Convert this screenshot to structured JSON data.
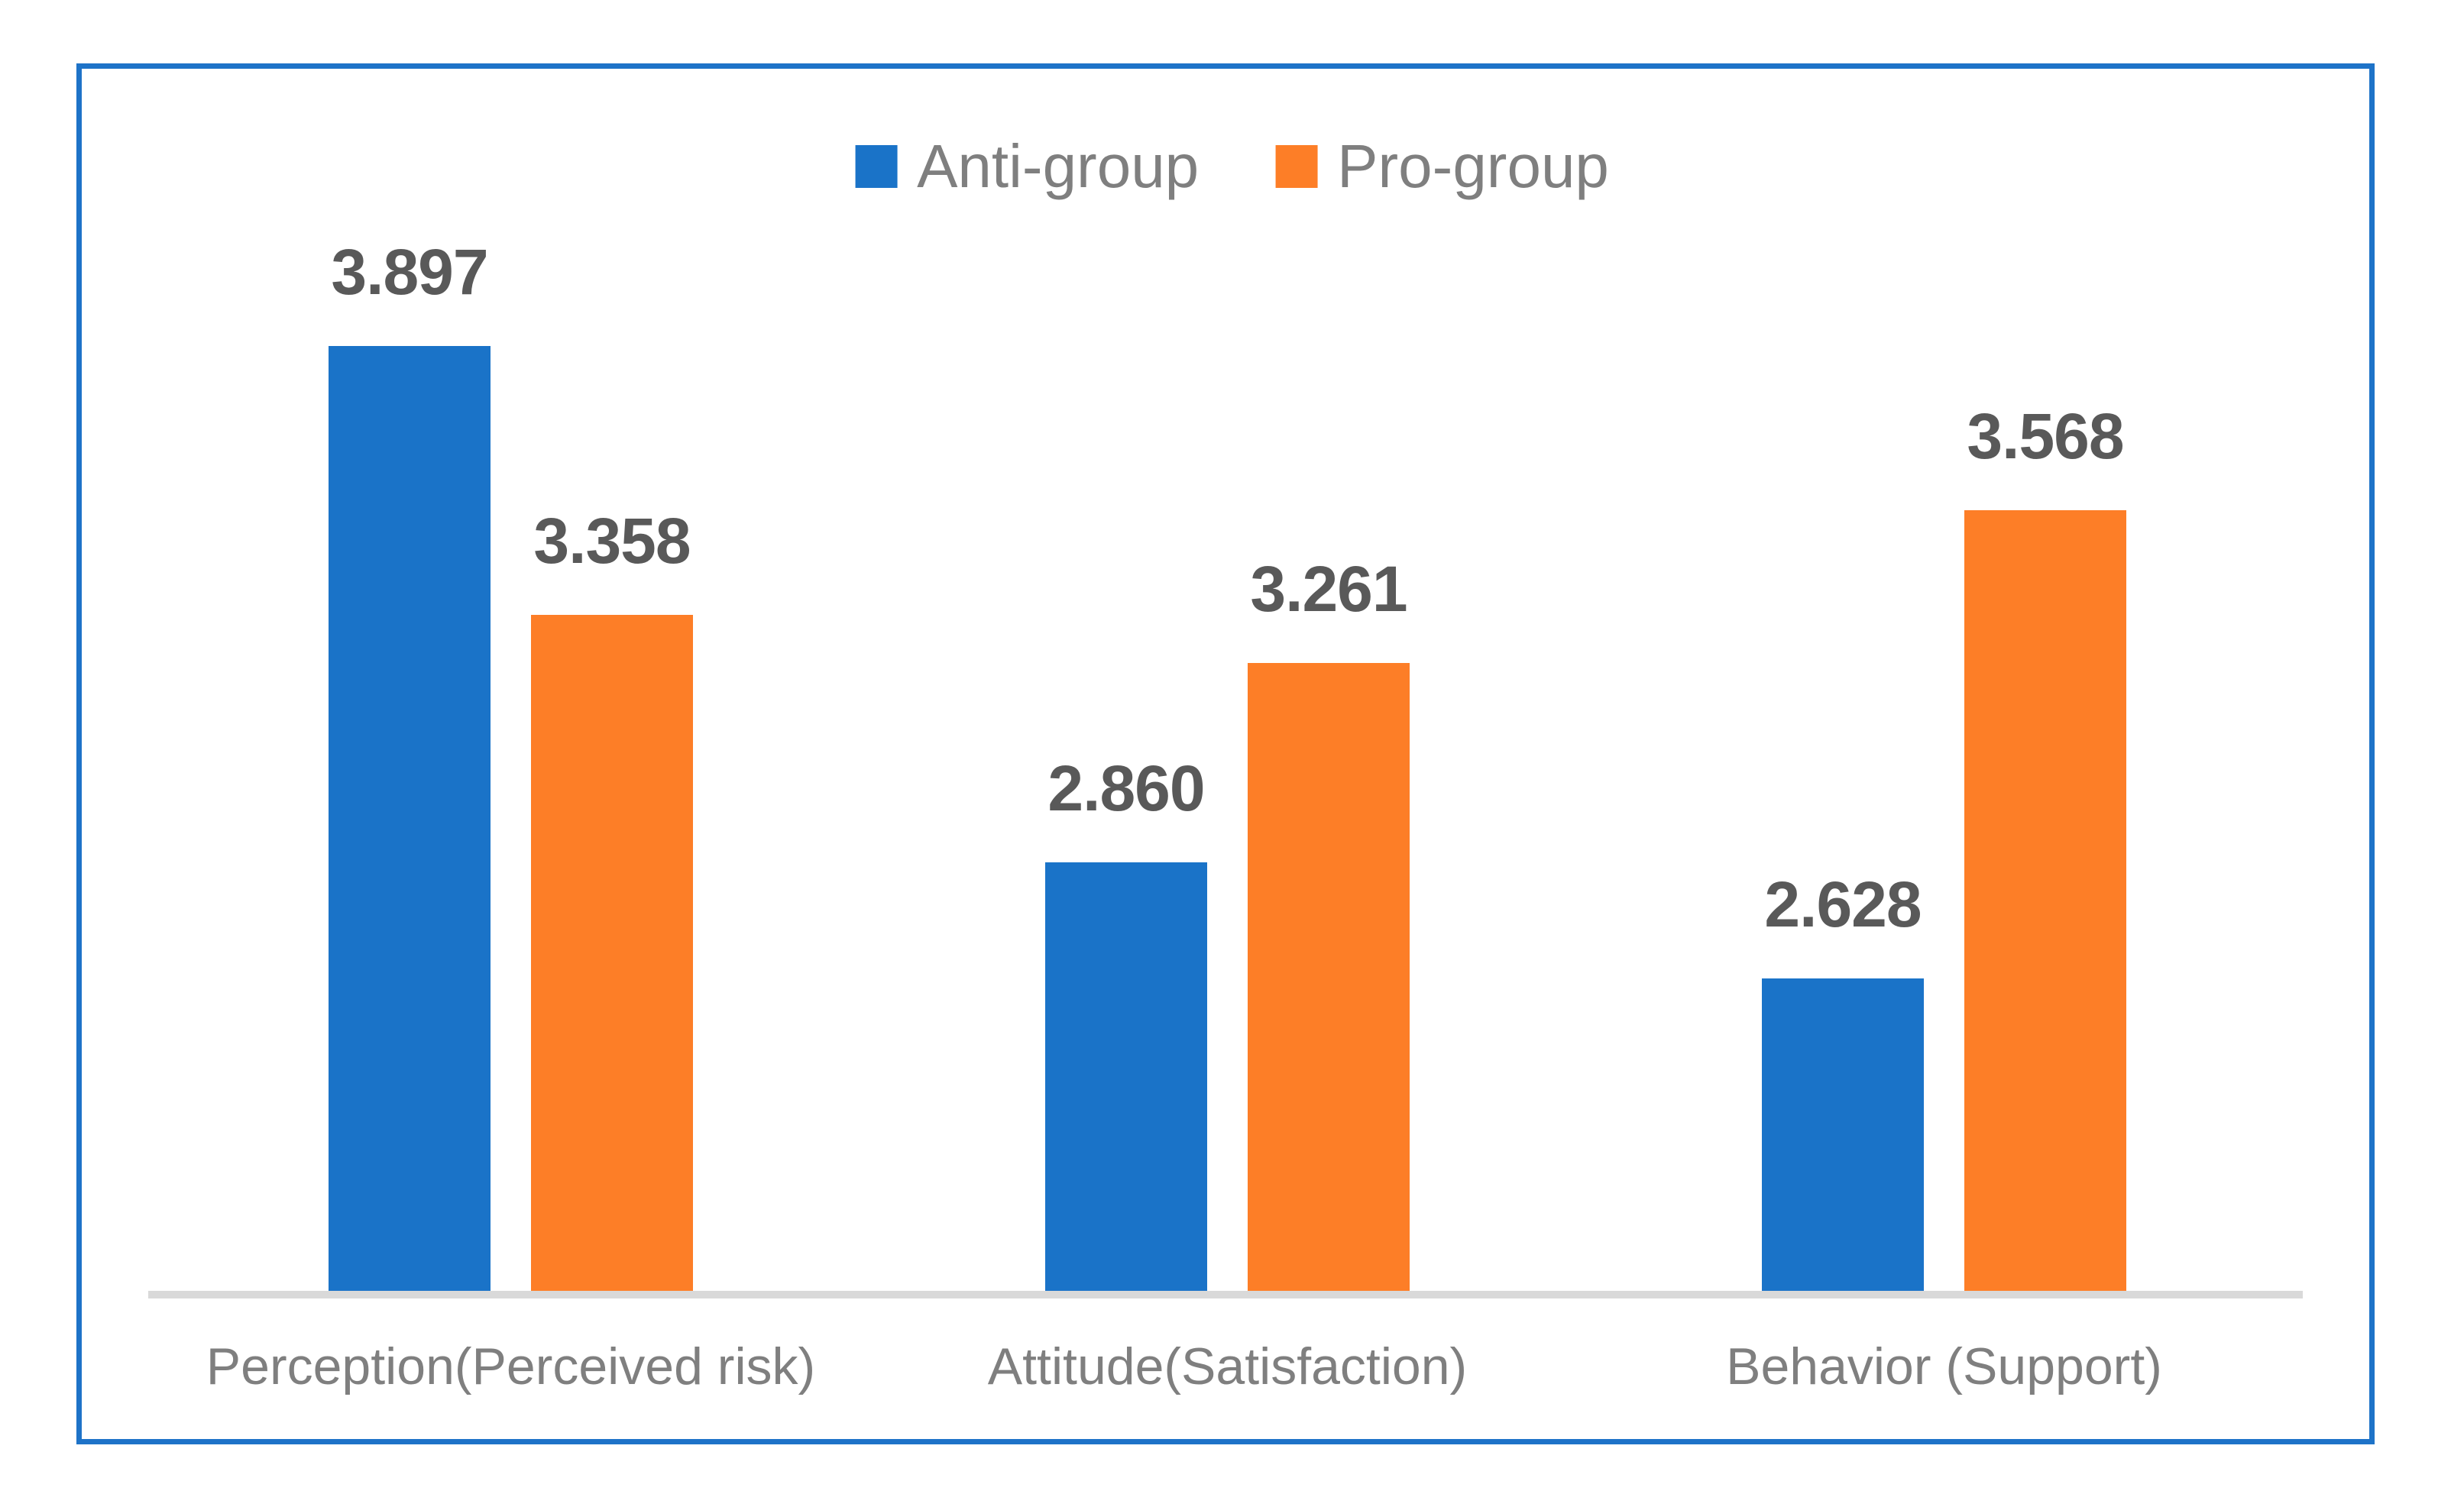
{
  "chart_data": {
    "type": "bar",
    "title": "",
    "categories": [
      "Perception(Perceived risk)",
      "Attitude(Satisfaction)",
      "Behavior (Support)"
    ],
    "series": [
      {
        "name": "Anti-group",
        "color": "#1A73C8",
        "values": [
          3.897,
          2.86,
          2.628
        ],
        "value_labels": [
          "3.897",
          "2.860",
          "2.628"
        ]
      },
      {
        "name": "Pro-group",
        "color": "#FD7E27",
        "values": [
          3.358,
          3.261,
          3.568
        ],
        "value_labels": [
          "3.358",
          "3.261",
          "3.568"
        ]
      }
    ],
    "xlabel": "",
    "ylabel": "",
    "ylim": [
      2.0,
      4.0
    ],
    "y_axis_visible": false,
    "gridlines": false,
    "legend_position": "top-center",
    "data_labels": true,
    "data_label_format": "3 decimals"
  },
  "colors": {
    "background": "#FFFFFF",
    "frame_border": "#1E73C8",
    "anti_group": "#1A73C8",
    "pro_group": "#FD7E27",
    "data_label_text": "#595959",
    "axis_text": "#7F7F7F",
    "baseline": "#D9D9D9"
  }
}
